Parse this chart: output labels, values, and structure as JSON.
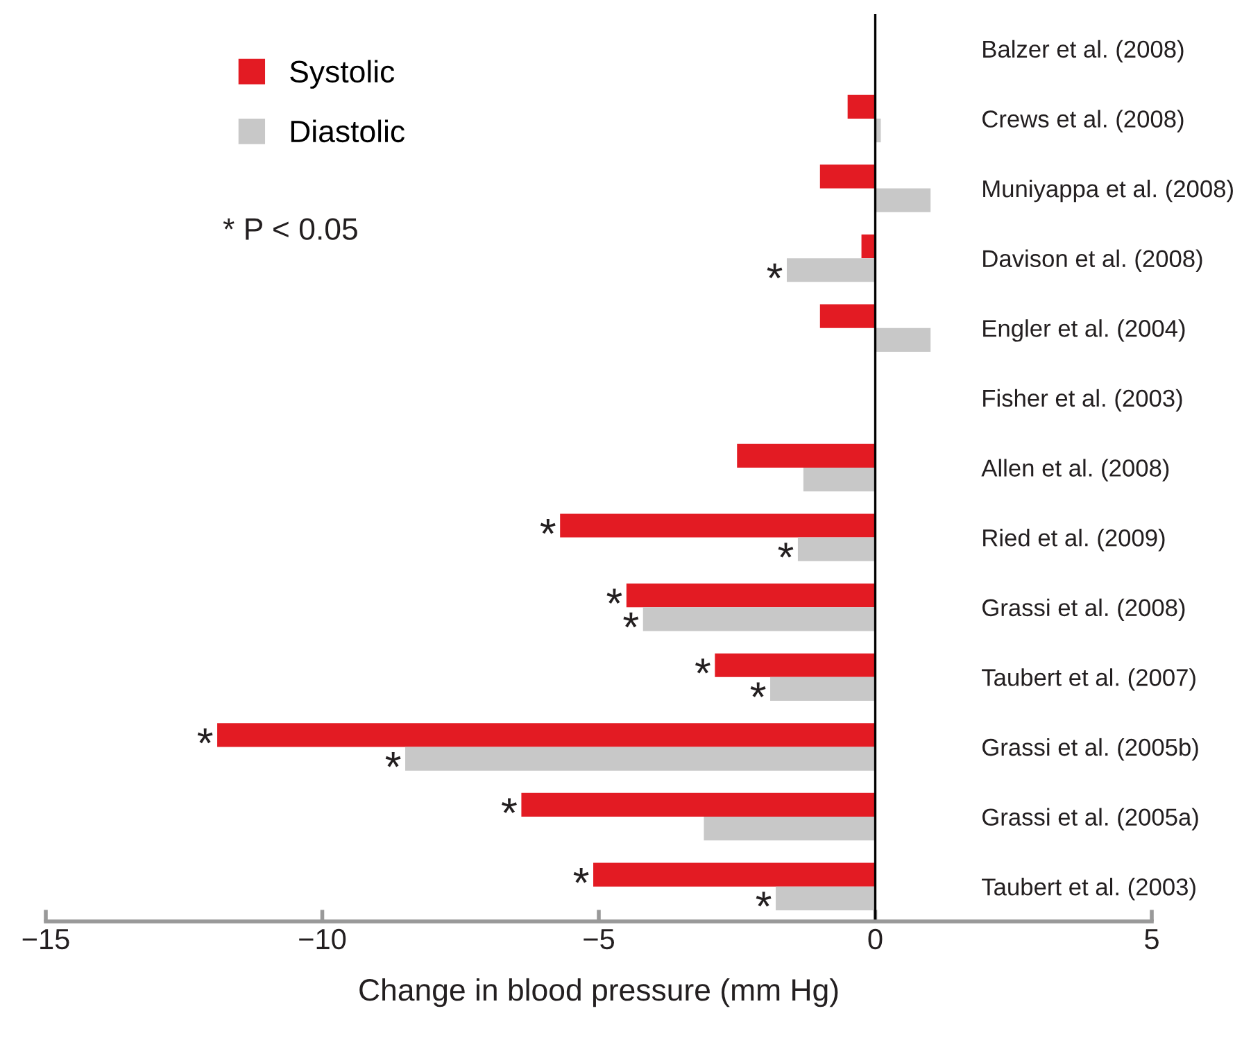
{
  "chart_data": {
    "type": "bar",
    "orientation": "horizontal",
    "xlabel": "Change in blood pressure (mm Hg)",
    "categories": [
      "Balzer et al. (2008)",
      "Crews et al. (2008)",
      "Muniyappa et al. (2008)",
      "Davison et al. (2008)",
      "Engler et al. (2004)",
      "Fisher et al. (2003)",
      "Allen et al. (2008)",
      "Ried et al. (2009)",
      "Grassi et al. (2008)",
      "Taubert et al. (2007)",
      "Grassi et al. (2005b)",
      "Grassi et al. (2005a)",
      "Taubert et al. (2003)"
    ],
    "series": [
      {
        "name": "Systolic",
        "color": "#e31b23",
        "values": [
          0,
          -0.5,
          -1.0,
          -0.25,
          -1.0,
          0,
          -2.5,
          -5.7,
          -4.5,
          -2.9,
          -11.9,
          -6.4,
          -5.1
        ],
        "value_labels": [
          null,
          null,
          null,
          null,
          null,
          null,
          null,
          "*",
          "*",
          "*",
          "*",
          "*",
          "*"
        ]
      },
      {
        "name": "Diastolic",
        "color": "#c8c8c8",
        "values": [
          0,
          0.1,
          1.0,
          -1.6,
          1.0,
          0,
          -1.3,
          -1.4,
          -4.2,
          -1.9,
          -8.5,
          -3.1,
          -1.8
        ],
        "value_labels": [
          null,
          null,
          null,
          "*",
          null,
          null,
          null,
          "*",
          "*",
          "*",
          "*",
          null,
          "*"
        ]
      }
    ],
    "xlim": [
      -15,
      5
    ],
    "xticks": [
      {
        "value": -15,
        "label": "−15"
      },
      {
        "value": -10,
        "label": "−10"
      },
      {
        "value": -5,
        "label": "−5"
      },
      0,
      5
    ],
    "annotations": [
      "* P < 0.05"
    ],
    "ref_lines": [
      {
        "axis": "x",
        "value": 0,
        "color": "#000000"
      }
    ],
    "legend": "top left",
    "grid": false
  }
}
